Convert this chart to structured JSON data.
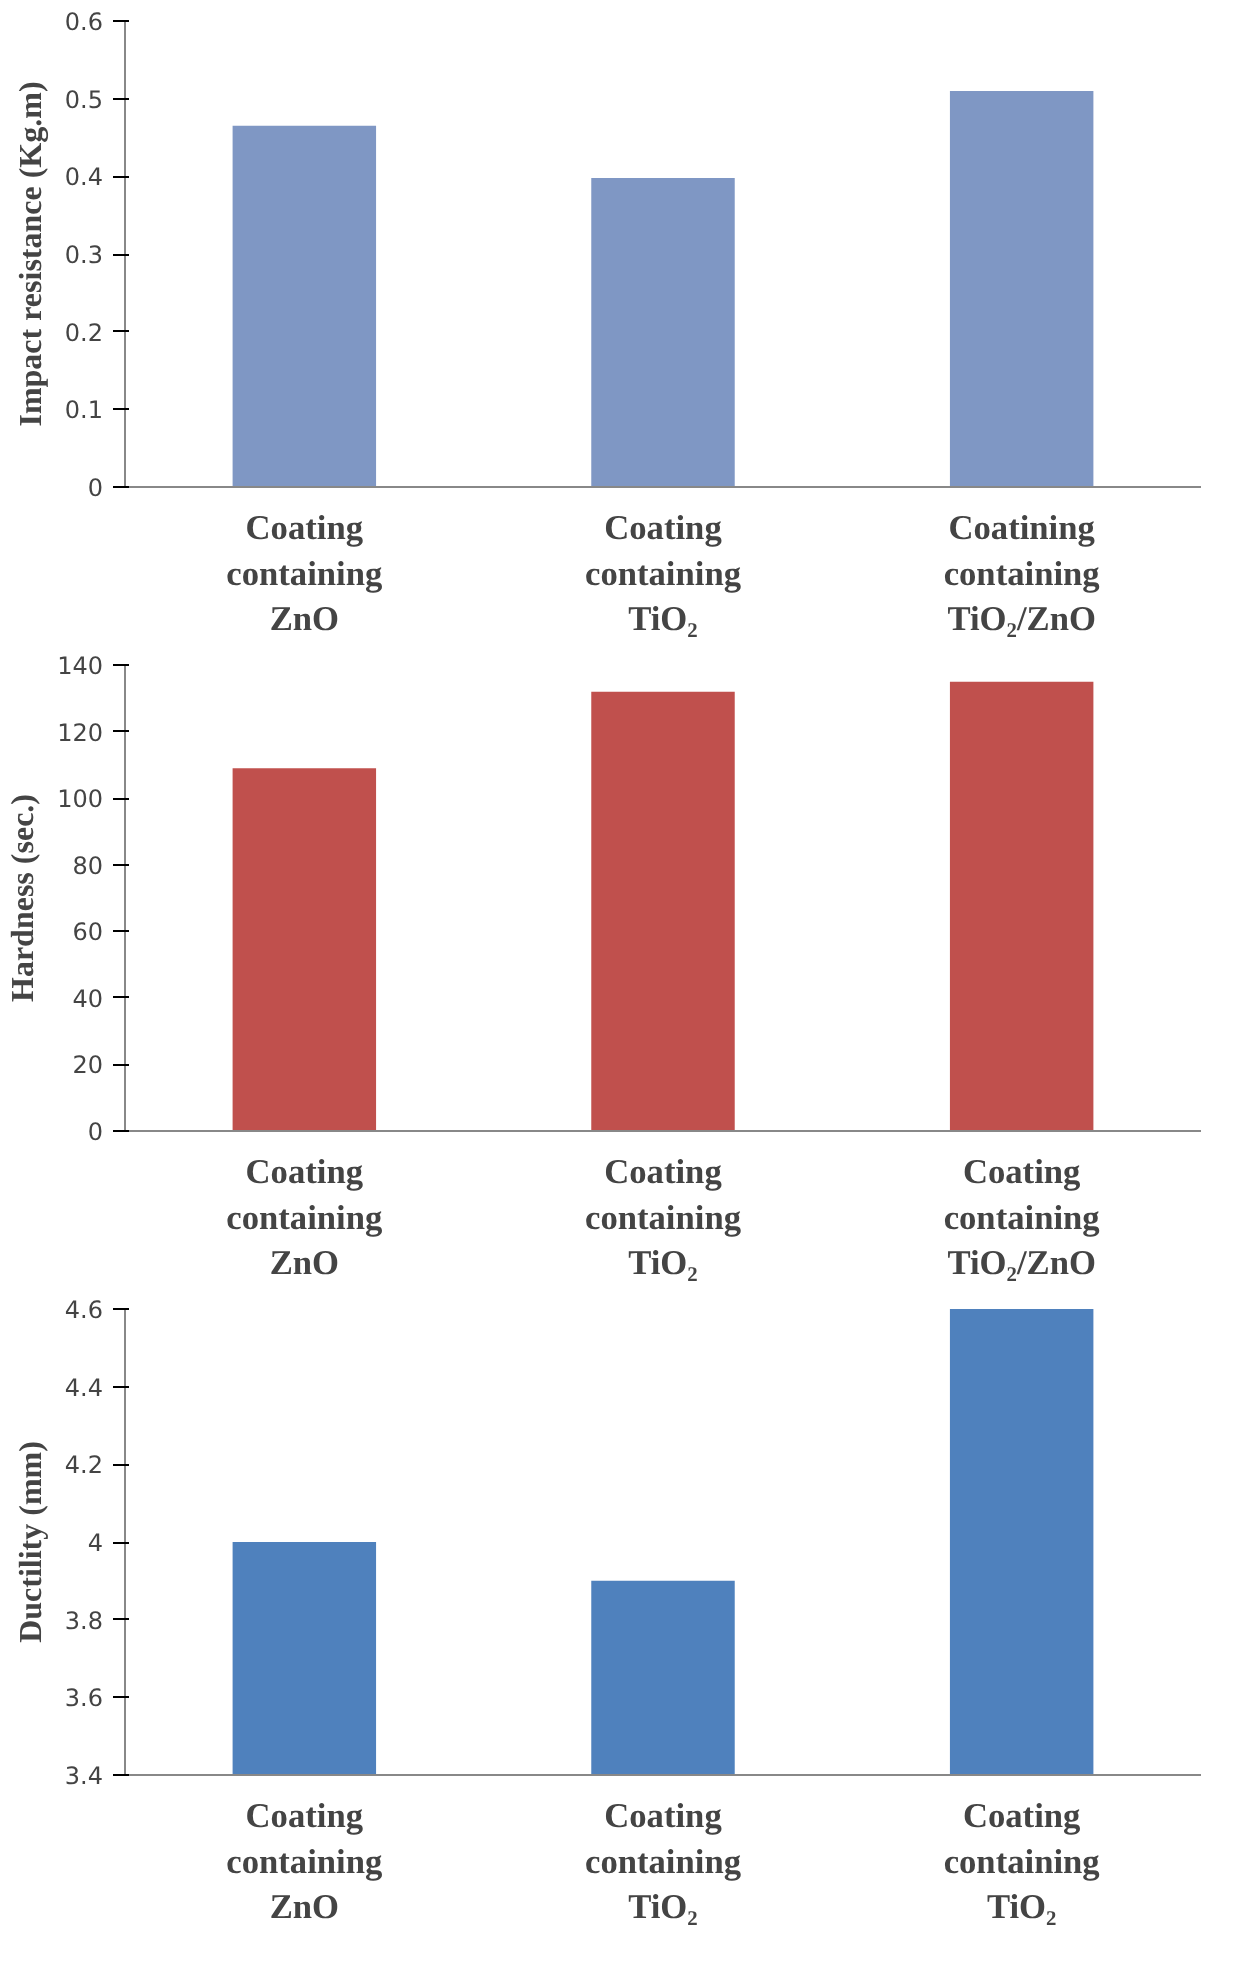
{
  "chart_data": [
    {
      "type": "bar",
      "categories": [
        "Coating containing ZnO",
        "Coating containing TiO₂",
        "Coatining containing TiO₂/ZnO"
      ],
      "values": [
        0.465,
        0.398,
        0.51
      ],
      "color": "#7f97c4",
      "ylabel": "Impact resistance (Kg.m)",
      "ylim": [
        0,
        0.6
      ],
      "yticks": [
        0,
        0.1,
        0.2,
        0.3,
        0.4,
        0.5,
        0.6
      ],
      "grid": false
    },
    {
      "type": "bar",
      "categories": [
        "Coating containing ZnO",
        "Coating containing TiO₂",
        "Coating containing TiO₂/ZnO"
      ],
      "values": [
        109,
        132,
        135
      ],
      "color": "#c0504d",
      "ylabel": "Hardness (sec.)",
      "ylim": [
        0,
        140
      ],
      "yticks": [
        0,
        20,
        40,
        60,
        80,
        100,
        120,
        140
      ],
      "grid": false
    },
    {
      "type": "bar",
      "categories": [
        "Coating containing ZnO",
        "Coating containing TiO₂",
        "Coating containing TiO₂"
      ],
      "values": [
        4.0,
        3.9,
        4.6
      ],
      "color": "#4f81bd",
      "ylabel": "Ductility (mm)",
      "ylim": [
        3.4,
        4.6
      ],
      "yticks": [
        3.4,
        3.6,
        3.8,
        4,
        4.2,
        4.4,
        4.6
      ],
      "grid": false
    }
  ]
}
